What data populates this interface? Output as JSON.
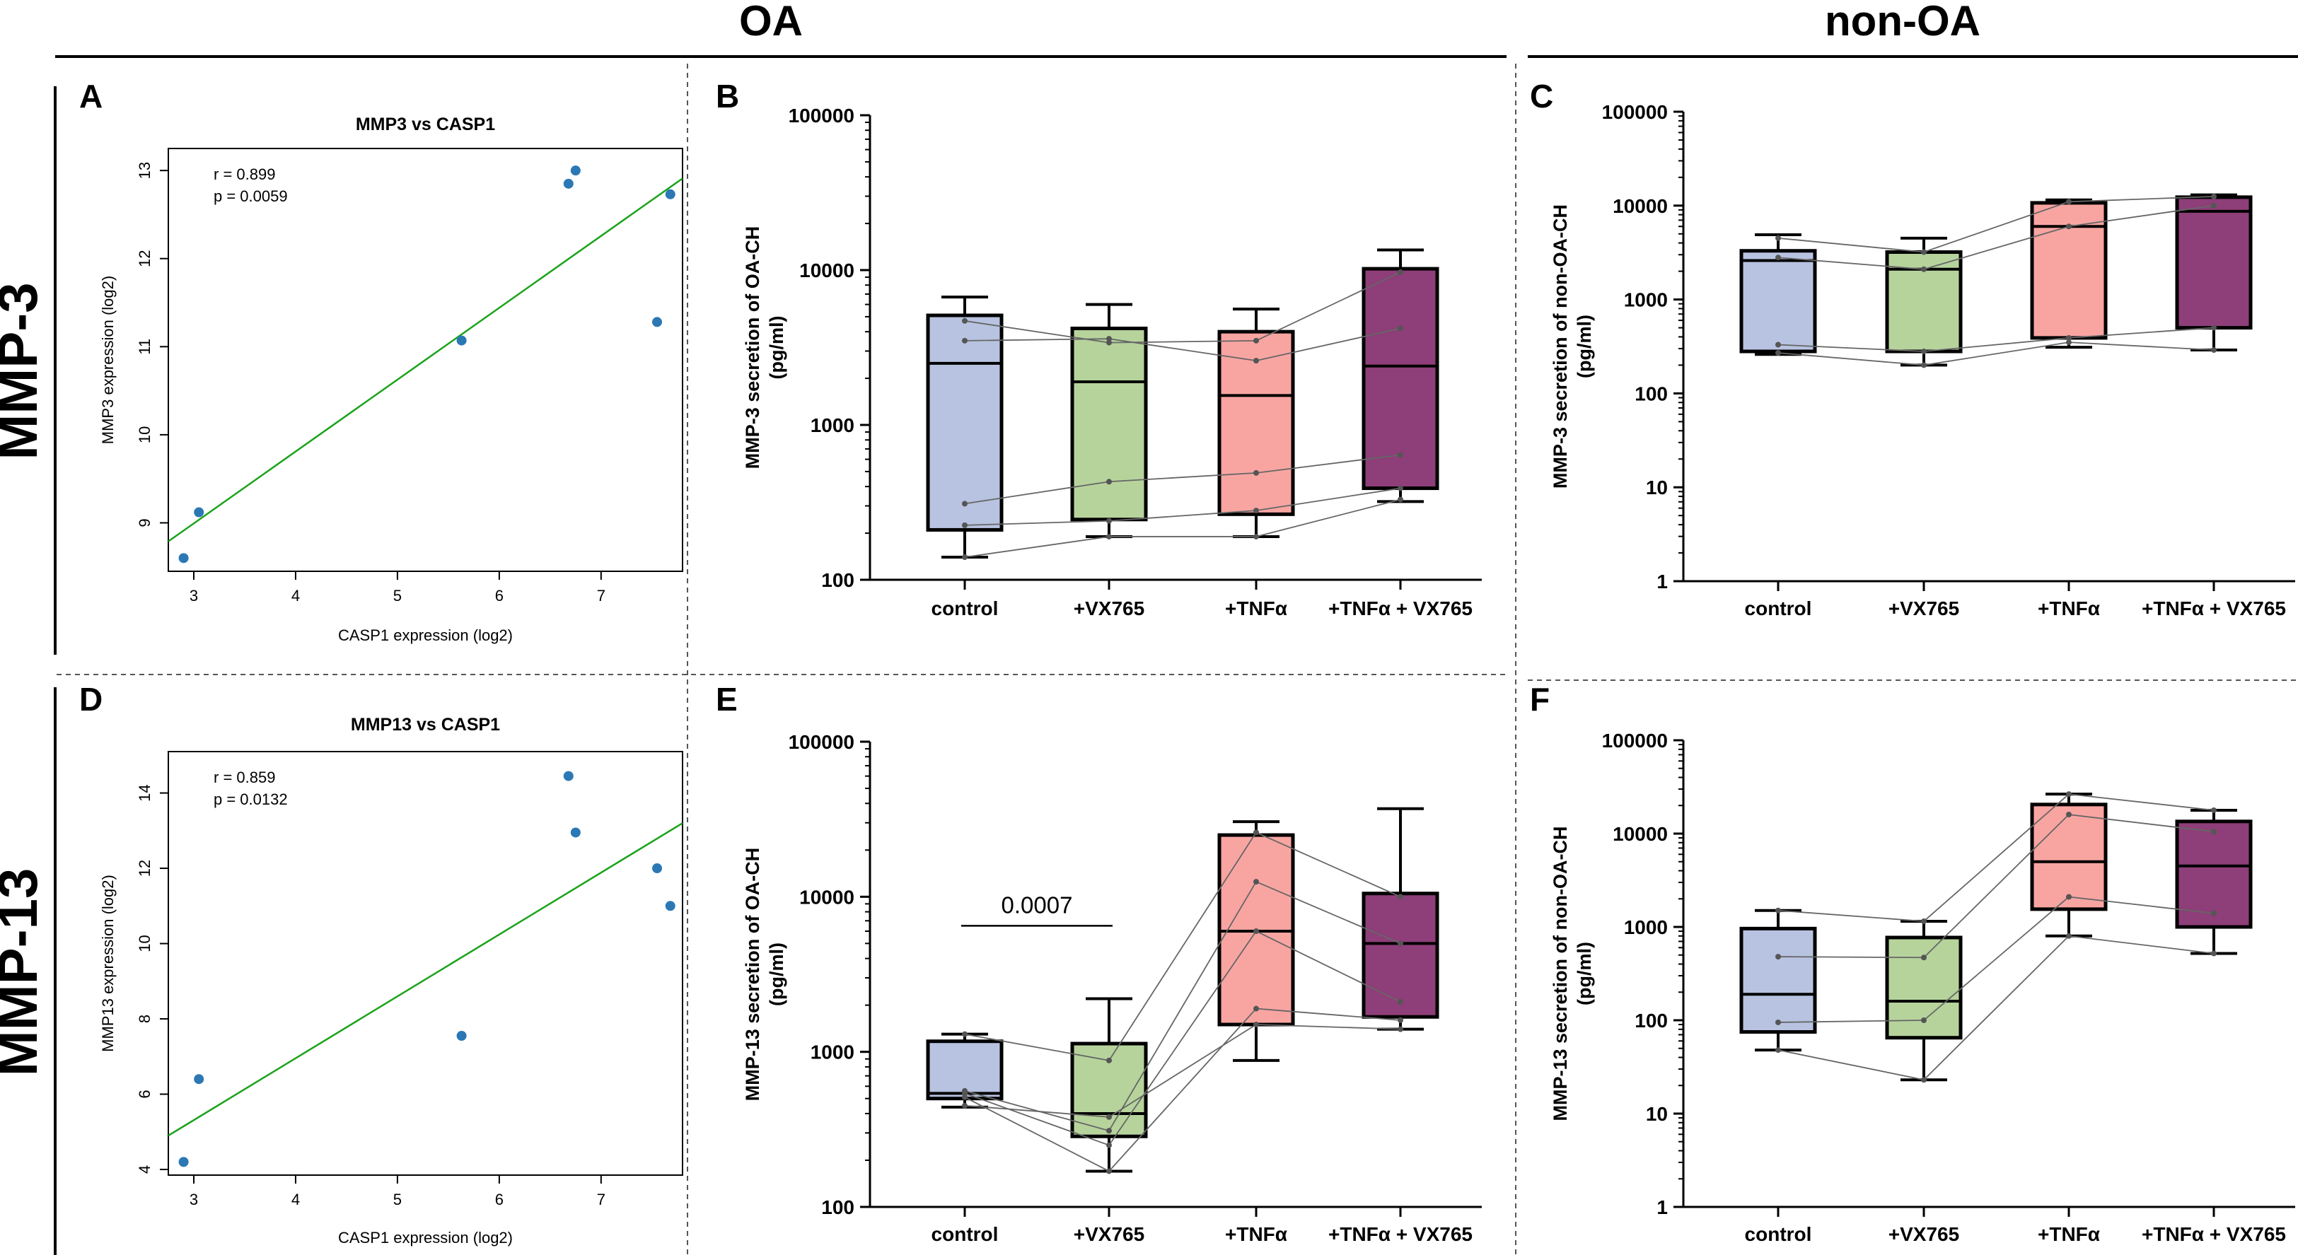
{
  "header": {
    "left": "OA",
    "right": "non-OA"
  },
  "rows": {
    "top": "MMP-3",
    "bottom": "MMP-13"
  },
  "panel_labels": [
    "A",
    "B",
    "C",
    "D",
    "E",
    "F"
  ],
  "colors": {
    "scatter_point": "#2b78b5",
    "fit_line": "#1aa31a",
    "box_colors": [
      "#b8c3e1",
      "#b6d39c",
      "#f8a5a2",
      "#8e3e78"
    ],
    "pair_line": "#666666"
  },
  "chart_data": [
    {
      "id": "A",
      "type": "scatter",
      "title": "MMP3 vs CASP1",
      "xlabel": "CASP1 expression (log2)",
      "ylabel": "MMP3 expression (log2)",
      "xlim": [
        2.75,
        7.8
      ],
      "ylim": [
        8.45,
        13.25
      ],
      "xticks": [
        3,
        4,
        5,
        6,
        7
      ],
      "yticks": [
        9,
        10,
        11,
        12,
        13
      ],
      "x": [
        2.9,
        3.05,
        5.63,
        6.68,
        6.75,
        7.55,
        7.68
      ],
      "y": [
        8.6,
        9.12,
        11.07,
        12.85,
        13.0,
        11.28,
        12.73
      ],
      "fit": {
        "x": [
          2.75,
          7.8
        ],
        "y": [
          8.79,
          12.91
        ]
      },
      "stats": [
        "r = 0.899",
        "p = 0.0059"
      ]
    },
    {
      "id": "B",
      "type": "box",
      "ylabel": "MMP-3 secretion of OA-CH",
      "ylabel_unit": "(pg/ml)",
      "yscale": "log",
      "ylim": [
        100,
        100000
      ],
      "yticks": [
        100,
        1000,
        10000,
        100000
      ],
      "categories": [
        "control",
        "+VX765",
        "+TNFα",
        "+TNFα + VX765"
      ],
      "boxes": [
        {
          "min": 140,
          "q1": 210,
          "median": 2500,
          "q3": 5100,
          "max": 6700
        },
        {
          "min": 190,
          "q1": 245,
          "median": 1900,
          "q3": 4200,
          "max": 6000
        },
        {
          "min": 190,
          "q1": 265,
          "median": 1550,
          "q3": 4000,
          "max": 5600
        },
        {
          "min": 320,
          "q1": 390,
          "median": 2400,
          "q3": 10200,
          "max": 13500
        }
      ],
      "paired": [
        [
          4700,
          3400,
          3500,
          9700
        ],
        [
          3500,
          3600,
          2600,
          4200
        ],
        [
          310,
          430,
          490,
          640
        ],
        [
          225,
          240,
          280,
          390
        ],
        [
          140,
          190,
          190,
          330
        ]
      ],
      "annotations": []
    },
    {
      "id": "C",
      "type": "box",
      "ylabel": "MMP-3 secretion of non-OA-CH",
      "ylabel_unit": "(pg/ml)",
      "yscale": "log",
      "ylim": [
        1,
        100000
      ],
      "yticks": [
        1,
        10,
        100,
        1000,
        10000,
        100000
      ],
      "categories": [
        "control",
        "+VX765",
        "+TNFα",
        "+TNFα + VX765"
      ],
      "boxes": [
        {
          "min": 260,
          "q1": 280,
          "median": 2600,
          "q3": 3300,
          "max": 4900
        },
        {
          "min": 200,
          "q1": 280,
          "median": 2100,
          "q3": 3200,
          "max": 4500
        },
        {
          "min": 310,
          "q1": 390,
          "median": 6000,
          "q3": 10700,
          "max": 11500
        },
        {
          "min": 290,
          "q1": 500,
          "median": 8700,
          "q3": 12300,
          "max": 13000
        }
      ],
      "paired": [
        [
          4500,
          3200,
          11000,
          12500
        ],
        [
          2800,
          2100,
          6000,
          10000
        ],
        [
          330,
          280,
          390,
          500
        ],
        [
          270,
          200,
          350,
          290
        ]
      ],
      "annotations": []
    },
    {
      "id": "D",
      "type": "scatter",
      "title": "MMP13 vs CASP1",
      "xlabel": "CASP1 expression (log2)",
      "ylabel": "MMP13 expression (log2)",
      "xlim": [
        2.75,
        7.8
      ],
      "ylim": [
        3.85,
        15.1
      ],
      "xticks": [
        3,
        4,
        5,
        6,
        7
      ],
      "yticks": [
        4,
        6,
        8,
        10,
        12,
        14
      ],
      "x": [
        2.9,
        3.05,
        5.63,
        6.68,
        6.75,
        7.55,
        7.68
      ],
      "y": [
        4.2,
        6.4,
        7.55,
        14.45,
        12.95,
        12.0,
        11.0
      ],
      "fit": {
        "x": [
          2.75,
          7.8
        ],
        "y": [
          4.9,
          13.2
        ]
      },
      "stats": [
        "r = 0.859",
        "p = 0.0132"
      ]
    },
    {
      "id": "E",
      "type": "box",
      "ylabel": "MMP-13 secretion of OA-CH",
      "ylabel_unit": "(pg/ml)",
      "yscale": "log",
      "ylim": [
        100,
        100000
      ],
      "yticks": [
        100,
        1000,
        10000,
        100000
      ],
      "categories": [
        "control",
        "+VX765",
        "+TNFα",
        "+TNFα + VX765"
      ],
      "boxes": [
        {
          "min": 440,
          "q1": 500,
          "median": 540,
          "q3": 1170,
          "max": 1300
        },
        {
          "min": 170,
          "q1": 285,
          "median": 400,
          "q3": 1130,
          "max": 2200
        },
        {
          "min": 880,
          "q1": 1500,
          "median": 6000,
          "q3": 25000,
          "max": 30500
        },
        {
          "min": 1400,
          "q1": 1680,
          "median": 5000,
          "q3": 10500,
          "max": 37000
        }
      ],
      "paired": [
        [
          1300,
          880,
          26000,
          10000
        ],
        [
          560,
          310,
          12500,
          5000
        ],
        [
          540,
          250,
          6000,
          2100
        ],
        [
          510,
          170,
          1900,
          1600
        ],
        [
          450,
          380,
          1500,
          1400
        ]
      ],
      "annotations": [
        {
          "text": "0.0007",
          "from": 0,
          "to": 1,
          "y": 6500
        }
      ]
    },
    {
      "id": "F",
      "type": "box",
      "ylabel": "MMP-13 secretion of non-OA-CH",
      "ylabel_unit": "(pg/ml)",
      "yscale": "log",
      "ylim": [
        1,
        100000
      ],
      "yticks": [
        1,
        10,
        100,
        1000,
        10000,
        100000
      ],
      "categories": [
        "control",
        "+VX765",
        "+TNFα",
        "+TNFα + VX765"
      ],
      "boxes": [
        {
          "min": 48,
          "q1": 75,
          "median": 190,
          "q3": 960,
          "max": 1500
        },
        {
          "min": 23,
          "q1": 65,
          "median": 160,
          "q3": 770,
          "max": 1150
        },
        {
          "min": 800,
          "q1": 1550,
          "median": 5000,
          "q3": 20500,
          "max": 26500
        },
        {
          "min": 520,
          "q1": 1000,
          "median": 4500,
          "q3": 13500,
          "max": 17800
        }
      ],
      "paired": [
        [
          1500,
          1150,
          26500,
          17800
        ],
        [
          480,
          470,
          16000,
          10500
        ],
        [
          95,
          100,
          2100,
          1400
        ],
        [
          48,
          23,
          800,
          520
        ]
      ],
      "annotations": []
    }
  ]
}
